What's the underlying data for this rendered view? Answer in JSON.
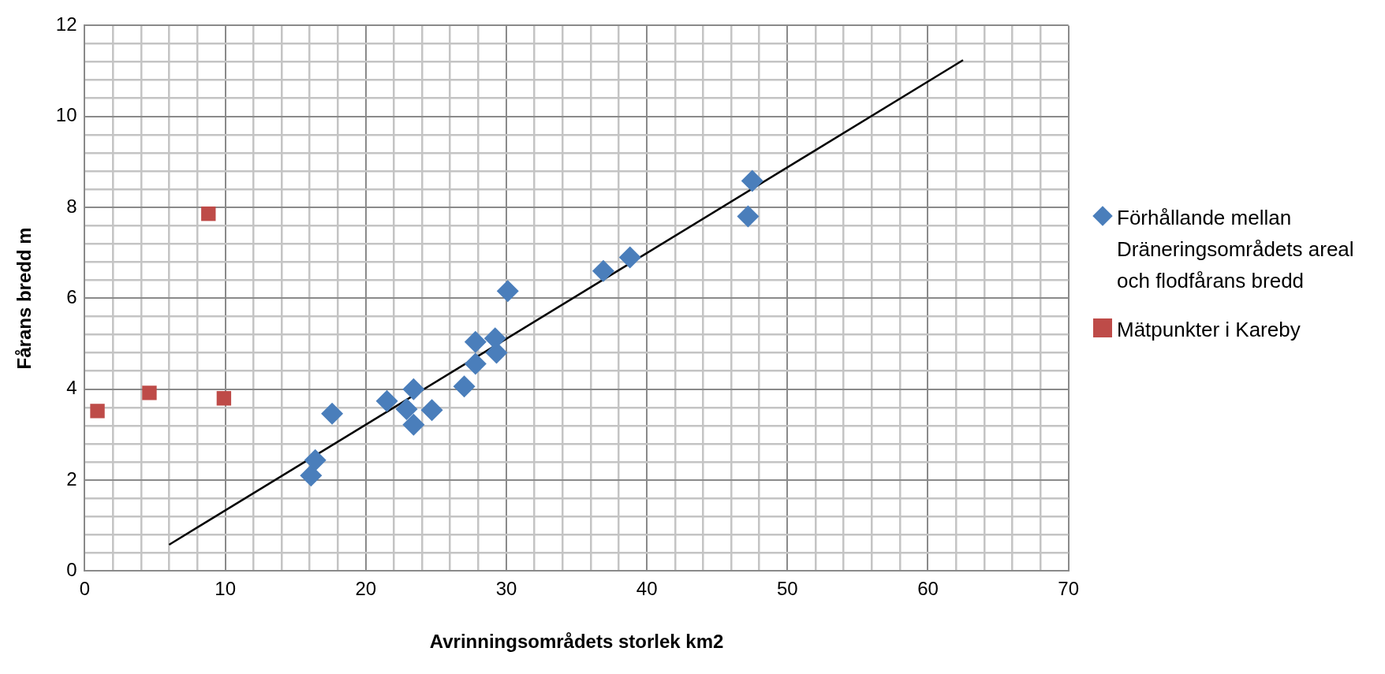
{
  "chart_data": {
    "type": "scatter",
    "xlabel": "Avrinningsområdets storlek km2",
    "ylabel": "Fårans bredd m",
    "xlim": [
      0,
      70
    ],
    "ylim": [
      0,
      12
    ],
    "xticks": [
      0,
      {
        "value": 2,
        "label": null
      },
      {
        "value": 4,
        "label": null
      },
      {
        "value": 6,
        "label": null
      },
      {
        "value": 8,
        "label": null
      },
      10,
      {
        "value": 12,
        "label": null
      },
      {
        "value": 14,
        "label": null
      },
      {
        "value": 16,
        "label": null
      },
      {
        "value": 18,
        "label": null
      },
      20,
      {
        "value": 22,
        "label": null
      },
      {
        "value": 24,
        "label": null
      },
      {
        "value": 26,
        "label": null
      },
      {
        "value": 28,
        "label": null
      },
      30,
      {
        "value": 32,
        "label": null
      },
      {
        "value": 34,
        "label": null
      },
      {
        "value": 36,
        "label": null
      },
      {
        "value": 38,
        "label": null
      },
      40,
      {
        "value": 42,
        "label": null
      },
      {
        "value": 44,
        "label": null
      },
      {
        "value": 46,
        "label": null
      },
      {
        "value": 48,
        "label": null
      },
      50,
      {
        "value": 52,
        "label": null
      },
      {
        "value": 54,
        "label": null
      },
      {
        "value": 56,
        "label": null
      },
      {
        "value": 58,
        "label": null
      },
      60,
      {
        "value": 62,
        "label": null
      },
      {
        "value": 64,
        "label": null
      },
      {
        "value": 66,
        "label": null
      },
      {
        "value": 68,
        "label": null
      },
      70
    ],
    "yticks": [
      0,
      {
        "value": 0.4,
        "label": null
      },
      {
        "value": 0.8,
        "label": null
      },
      {
        "value": 1.2,
        "label": null
      },
      {
        "value": 1.6,
        "label": null
      },
      2,
      {
        "value": 2.4,
        "label": null
      },
      {
        "value": 2.8,
        "label": null
      },
      {
        "value": 3.2,
        "label": null
      },
      {
        "value": 3.6,
        "label": null
      },
      4,
      {
        "value": 4.4,
        "label": null
      },
      {
        "value": 4.8,
        "label": null
      },
      {
        "value": 5.2,
        "label": null
      },
      {
        "value": 5.6,
        "label": null
      },
      6,
      {
        "value": 6.4,
        "label": null
      },
      {
        "value": 6.8,
        "label": null
      },
      {
        "value": 7.2,
        "label": null
      },
      {
        "value": 7.6,
        "label": null
      },
      8,
      {
        "value": 8.4,
        "label": null
      },
      {
        "value": 8.8,
        "label": null
      },
      {
        "value": 9.2,
        "label": null
      },
      {
        "value": 9.6,
        "label": null
      },
      10,
      {
        "value": 10.4,
        "label": null
      },
      {
        "value": 10.8,
        "label": null
      },
      {
        "value": 11.2,
        "label": null
      },
      {
        "value": 11.6,
        "label": null
      },
      12
    ],
    "grid": true,
    "legend": "right",
    "series": [
      {
        "name": "Förhållande mellan Dräneringsområdets areal och flodfårans bredd",
        "color": "#4a7ebb",
        "marker": "diamond",
        "x": [
          16.1,
          16.4,
          17.6,
          21.5,
          22.9,
          23.4,
          23.4,
          24.7,
          27.0,
          27.8,
          27.8,
          29.2,
          29.3,
          30.1,
          36.9,
          38.8,
          47.2,
          47.5
        ],
        "values": [
          2.1,
          2.44,
          3.46,
          3.74,
          3.56,
          4.0,
          3.22,
          3.54,
          4.06,
          5.04,
          4.56,
          5.12,
          4.8,
          6.16,
          6.6,
          6.9,
          7.8,
          8.58
        ]
      },
      {
        "name": "Mätpunkter i Kareby",
        "color": "#be4b48",
        "marker": "square",
        "x": [
          0.9,
          4.6,
          8.8,
          9.9
        ],
        "values": [
          3.52,
          3.92,
          7.86,
          3.8
        ]
      },
      {
        "type": "line",
        "color": "#000000",
        "marker": "none",
        "x": [
          6.0,
          62.5
        ],
        "values": [
          0.58,
          11.24
        ]
      }
    ]
  }
}
